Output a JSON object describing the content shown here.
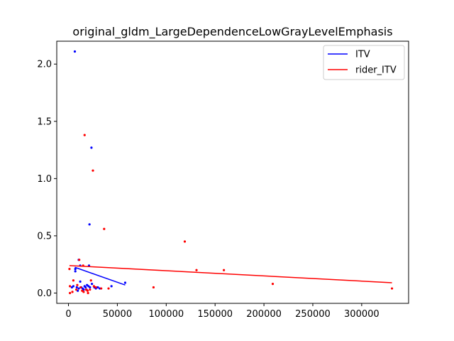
{
  "chart_data": {
    "type": "scatter",
    "title": "original_gldm_LargeDependenceLowGrayLevelEmphasis",
    "xlabel": "",
    "ylabel": "",
    "xlim": [
      -12000,
      348000
    ],
    "ylim": [
      -0.09,
      2.2
    ],
    "x_ticks": [
      0,
      50000,
      100000,
      150000,
      200000,
      250000,
      300000
    ],
    "y_ticks": [
      0.0,
      0.5,
      1.0,
      1.5,
      2.0
    ],
    "x_tick_labels": [
      "0",
      "50000",
      "100000",
      "150000",
      "200000",
      "250000",
      "300000"
    ],
    "y_tick_labels": [
      "0.0",
      "0.5",
      "1.0",
      "1.5",
      "2.0"
    ],
    "grid": false,
    "legend_position": "top-right",
    "series": [
      {
        "name": "ITV",
        "color": "#0000ff",
        "points": [
          [
            6500,
            2.11
          ],
          [
            23500,
            1.27
          ],
          [
            21500,
            0.6
          ],
          [
            10500,
            0.29
          ],
          [
            21000,
            0.24
          ],
          [
            12000,
            0.24
          ],
          [
            7000,
            0.19
          ],
          [
            7000,
            0.21
          ],
          [
            8500,
            0.05
          ],
          [
            10500,
            0.04
          ],
          [
            12000,
            0.1
          ],
          [
            13000,
            0.05
          ],
          [
            14500,
            0.04
          ],
          [
            16500,
            0.06
          ],
          [
            17500,
            0.05
          ],
          [
            19000,
            0.07
          ],
          [
            20500,
            0.06
          ],
          [
            22000,
            0.05
          ],
          [
            24000,
            0.08
          ],
          [
            26500,
            0.05
          ],
          [
            28000,
            0.04
          ],
          [
            30000,
            0.05
          ],
          [
            32000,
            0.04
          ],
          [
            44000,
            0.06
          ],
          [
            58000,
            0.09
          ],
          [
            3500,
            0.05
          ],
          [
            5000,
            0.06
          ],
          [
            9500,
            0.02
          ],
          [
            15500,
            0.03
          ],
          [
            18500,
            0.03
          ]
        ],
        "trend": [
          [
            6500,
            0.225
          ],
          [
            58000,
            0.07
          ]
        ]
      },
      {
        "name": "rider_ITV",
        "color": "#ff0000",
        "points": [
          [
            16500,
            1.38
          ],
          [
            25000,
            1.07
          ],
          [
            36500,
            0.56
          ],
          [
            119000,
            0.45
          ],
          [
            11000,
            0.29
          ],
          [
            1000,
            0.21
          ],
          [
            15000,
            0.24
          ],
          [
            131000,
            0.2
          ],
          [
            159000,
            0.2
          ],
          [
            209000,
            0.08
          ],
          [
            331000,
            0.04
          ],
          [
            87000,
            0.05
          ],
          [
            23000,
            0.11
          ],
          [
            5000,
            0.11
          ],
          [
            1500,
            0.06
          ],
          [
            9000,
            0.07
          ],
          [
            12500,
            0.05
          ],
          [
            15500,
            0.01
          ],
          [
            18000,
            0.03
          ],
          [
            19500,
            0.02
          ],
          [
            28000,
            0.05
          ],
          [
            33500,
            0.04
          ],
          [
            41000,
            0.04
          ],
          [
            4000,
            0.01
          ],
          [
            8000,
            0.03
          ],
          [
            14000,
            0.02
          ],
          [
            20000,
            0.0
          ],
          [
            1500,
            0.0
          ],
          [
            26000,
            0.06
          ],
          [
            22000,
            0.03
          ]
        ],
        "trend": [
          [
            1000,
            0.24
          ],
          [
            331000,
            0.09
          ]
        ]
      }
    ]
  }
}
